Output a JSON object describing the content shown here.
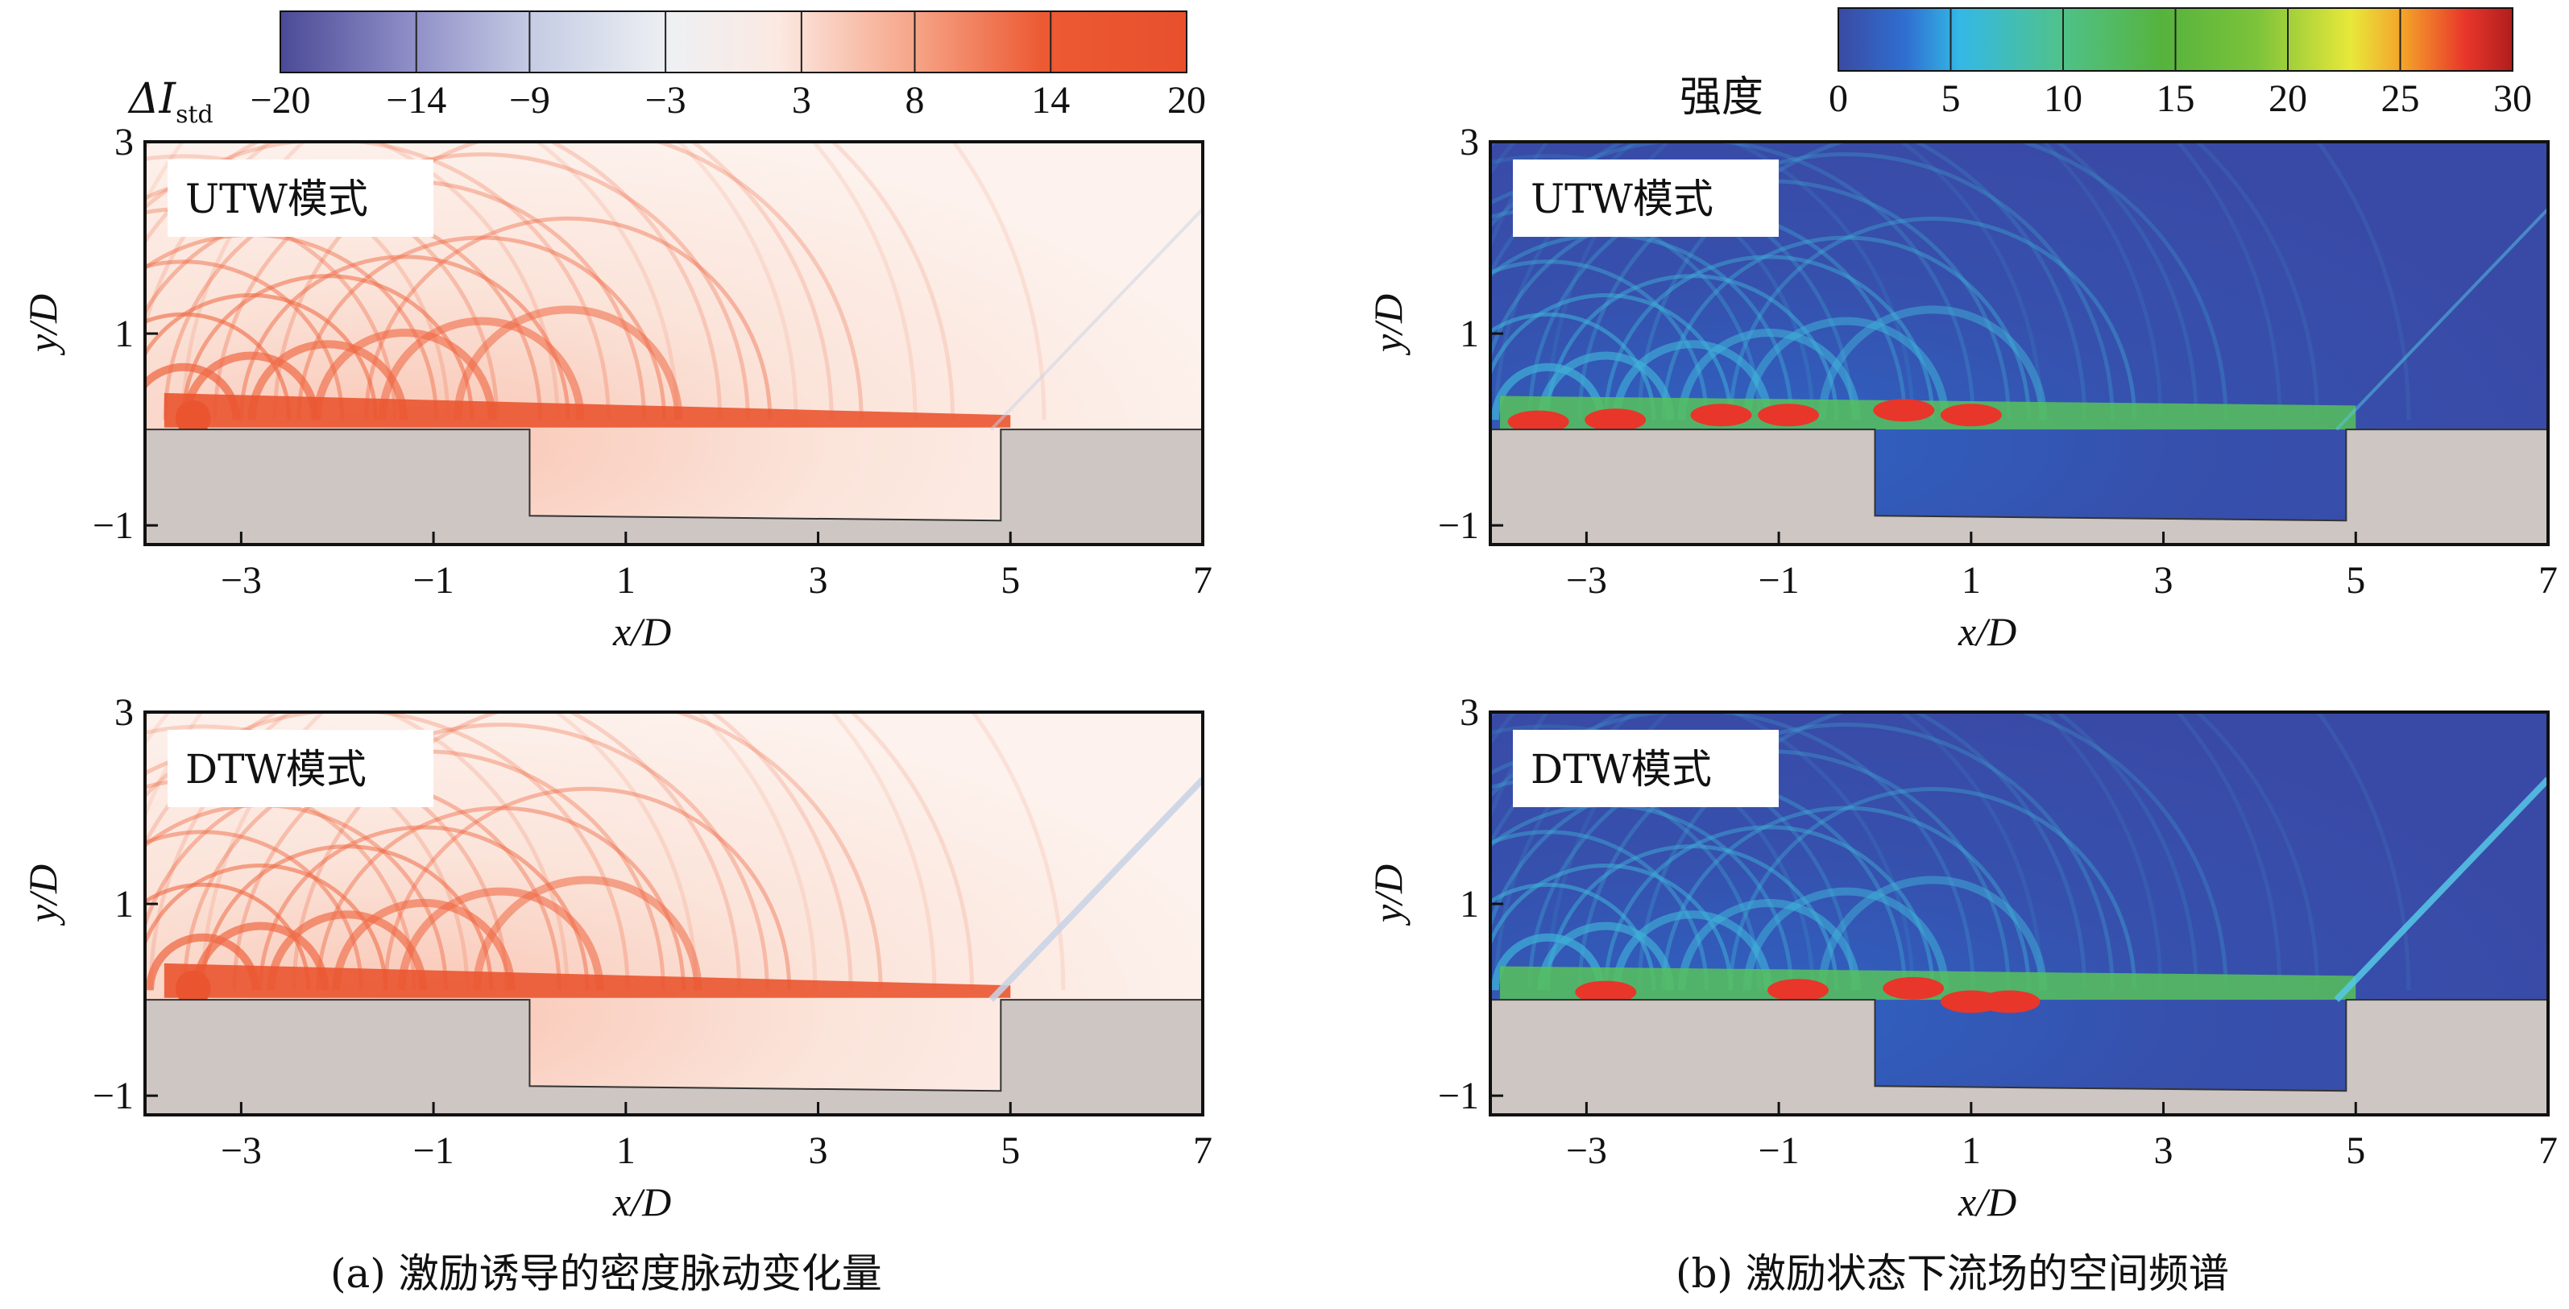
{
  "chart_data": [
    {
      "type": "heatmap",
      "panel_id": "a",
      "caption": "(a) 激励诱导的密度脉动变化量",
      "xlabel": "x/D",
      "ylabel": "y/D",
      "xticks": [
        -3,
        -1,
        1,
        3,
        5,
        7
      ],
      "yticks": [
        -1,
        1,
        3
      ],
      "xlim": [
        -4,
        7
      ],
      "ylim": [
        -1.2,
        3
      ],
      "colorbar": {
        "label_main": "ΔI",
        "label_sub": "std",
        "ticks": [
          -20,
          -14,
          -9,
          -3,
          3,
          8,
          14,
          20
        ],
        "tick_labels": [
          "−20",
          "−14",
          "−9",
          "−3",
          "3",
          "8",
          "14",
          "20"
        ],
        "colors": [
          "#4b4a96",
          "#8d8cc6",
          "#c6cde4",
          "#eef0f3",
          "#fbe9e2",
          "#f6a487",
          "#ec5a33",
          "#e8502c"
        ]
      },
      "subplots": [
        {
          "mode_label": "UTW模式"
        },
        {
          "mode_label": "DTW模式"
        }
      ]
    },
    {
      "type": "heatmap",
      "panel_id": "b",
      "caption": "(b) 激励状态下流场的空间频谱",
      "xlabel": "x/D",
      "ylabel": "y/D",
      "xticks": [
        -3,
        -1,
        1,
        3,
        5,
        7
      ],
      "yticks": [
        -1,
        1,
        3
      ],
      "xlim": [
        -4,
        7
      ],
      "ylim": [
        -1.2,
        3
      ],
      "colorbar": {
        "label": "强度",
        "ticks": [
          0,
          5,
          10,
          15,
          20,
          25,
          30
        ],
        "tick_labels": [
          "0",
          "5",
          "10",
          "15",
          "20",
          "25",
          "30"
        ],
        "colors": [
          "#3a4aa3",
          "#2f6fd0",
          "#34b8e6",
          "#4fc28a",
          "#55b33d",
          "#7cc33a",
          "#e8e83a",
          "#f4a02a",
          "#e8362a",
          "#b01e1e"
        ]
      },
      "subplots": [
        {
          "mode_label": "UTW模式"
        },
        {
          "mode_label": "DTW模式"
        }
      ]
    }
  ]
}
